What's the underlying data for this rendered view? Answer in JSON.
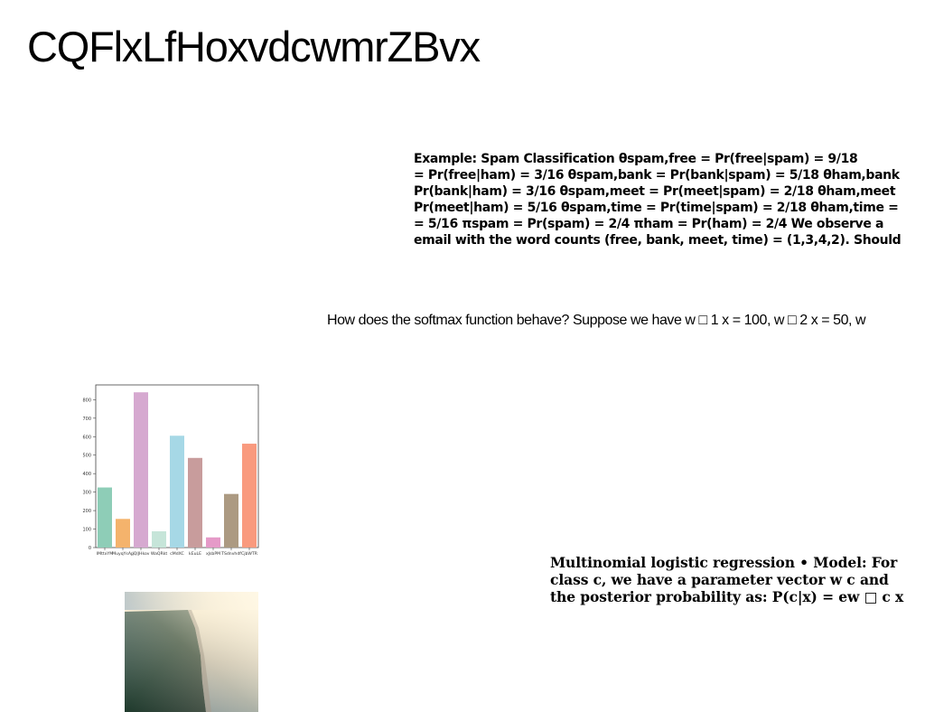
{
  "page": {
    "title": "CQFlxLfHoxvdcwmrZBvx"
  },
  "spam_example": {
    "lines": [
      "Example: Spam Classification θspam,free = Pr(free|spam) = 9/18",
      "= Pr(free|ham) = 3/16 θspam,bank = Pr(bank|spam) = 5/18 θham,bank",
      "Pr(bank|ham) = 3/16 θspam,meet = Pr(meet|spam) = 2/18 θham,meet",
      "Pr(meet|ham) = 5/16 θspam,time = Pr(time|spam) = 2/18 θham,time =",
      "= 5/16 πspam = Pr(spam) = 2/4 πham = Pr(ham) = 2/4 We observe a",
      "email with the word counts (free, bank, meet, time) = (1,3,4,2). Should"
    ]
  },
  "softmax": {
    "text": "How does the softmax function behave? Suppose we have w □ 1 x = 100, w □ 2 x = 50, w"
  },
  "mlr": {
    "lines": [
      "Multinomial logistic regression • Model: For",
      "class c, we have a parameter vector w c and",
      "the posterior probability as: P(c|x) = ew □ c x"
    ]
  },
  "chart_data": {
    "type": "bar",
    "categories": [
      "IMttxYM",
      "MuyqYsAp",
      "jQlJHkov",
      "WaQRkt",
      "cMdXC",
      "kEuLE",
      "xJsbPM",
      "TSdnvhdf",
      "CjbWTR"
    ],
    "values": [
      325,
      155,
      840,
      88,
      605,
      485,
      55,
      290,
      562
    ],
    "colors": [
      "#8ecdb7",
      "#f4b36c",
      "#d6a9d0",
      "#c6e5d9",
      "#a6d8e6",
      "#c89c9c",
      "#e59ac8",
      "#ac9a82",
      "#f99a7e"
    ],
    "ylim": [
      0,
      880
    ],
    "yticks": [
      0,
      100,
      200,
      300,
      400,
      500,
      600,
      700,
      800
    ],
    "grid": false
  },
  "photo": {
    "icon": "aerial-coastline-photo"
  }
}
